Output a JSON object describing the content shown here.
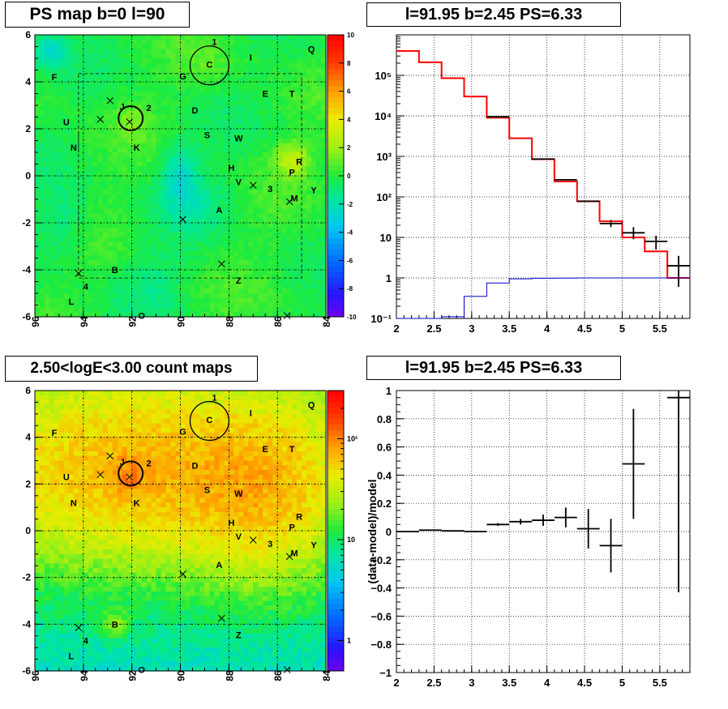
{
  "panels": {
    "tl_title": "PS map b=0 l=90",
    "tr_title": "l=91.95 b=2.45 PS=6.33",
    "bl_title": "2.50<logE<3.00 count maps",
    "br_title": "l=91.95 b=2.45 PS=6.33"
  },
  "chart_data": [
    {
      "type": "heatmap",
      "id": "ps_map",
      "title": "PS map b=0 l=90",
      "xlim": [
        96,
        84
      ],
      "ylim": [
        -6,
        6
      ],
      "x_ticks": [
        96,
        94,
        92,
        90,
        88,
        86,
        84
      ],
      "y_ticks": [
        -6,
        -4,
        -2,
        0,
        2,
        4,
        6
      ],
      "colorbar": {
        "min": -10,
        "max": 10,
        "ticks": [
          -10,
          -8,
          -6,
          -4,
          -2,
          0,
          2,
          4,
          6,
          8,
          10
        ],
        "scale": "linear"
      },
      "grid": true,
      "hotspots": [
        {
          "l": 95.4,
          "b": 5.3,
          "value": -4
        },
        {
          "l": 90.1,
          "b": 0.2,
          "value": -2.5
        },
        {
          "l": 85.5,
          "b": 0.8,
          "value": 3
        }
      ],
      "circles": [
        {
          "l": 88.8,
          "b": 4.7,
          "r": 0.8
        },
        {
          "l": 92.05,
          "b": 2.45,
          "r": 0.5
        }
      ],
      "crosses": [
        {
          "l": 92.9,
          "b": 3.2
        },
        {
          "l": 93.3,
          "b": 2.4
        },
        {
          "l": 92.1,
          "b": 2.3
        },
        {
          "l": 87.0,
          "b": -0.4
        },
        {
          "l": 85.5,
          "b": -1.1
        },
        {
          "l": 89.9,
          "b": -1.85
        },
        {
          "l": 88.3,
          "b": -3.75
        },
        {
          "l": 94.2,
          "b": -4.15
        },
        {
          "l": 85.6,
          "b": -5.95
        }
      ],
      "labels": [
        {
          "t": "1",
          "l": 88.6,
          "b": 5.7
        },
        {
          "t": "C",
          "l": 88.8,
          "b": 4.75
        },
        {
          "t": "I",
          "l": 87.1,
          "b": 5.05
        },
        {
          "t": "Q",
          "l": 84.6,
          "b": 5.4
        },
        {
          "t": "G",
          "l": 89.9,
          "b": 4.25
        },
        {
          "t": "F",
          "l": 95.2,
          "b": 4.2
        },
        {
          "t": "E",
          "l": 86.5,
          "b": 3.5
        },
        {
          "t": "T",
          "l": 85.4,
          "b": 3.5
        },
        {
          "t": "2",
          "l": 91.3,
          "b": 2.9
        },
        {
          "t": "D",
          "l": 89.4,
          "b": 2.8
        },
        {
          "t": "J",
          "l": 92.4,
          "b": 2.95
        },
        {
          "t": "U",
          "l": 94.7,
          "b": 2.3
        },
        {
          "t": "S",
          "l": 88.9,
          "b": 1.75
        },
        {
          "t": "W",
          "l": 87.6,
          "b": 1.6
        },
        {
          "t": "N",
          "l": 94.4,
          "b": 1.2
        },
        {
          "t": "K",
          "l": 91.8,
          "b": 1.2
        },
        {
          "t": "R",
          "l": 85.1,
          "b": 0.6
        },
        {
          "t": "H",
          "l": 87.9,
          "b": 0.35
        },
        {
          "t": "P",
          "l": 85.4,
          "b": 0.15
        },
        {
          "t": "V",
          "l": 87.6,
          "b": -0.25
        },
        {
          "t": "3",
          "l": 86.3,
          "b": -0.55
        },
        {
          "t": "Y",
          "l": 84.5,
          "b": -0.6
        },
        {
          "t": "M",
          "l": 85.3,
          "b": -0.95
        },
        {
          "t": "A",
          "l": 88.4,
          "b": -1.45
        },
        {
          "t": "B",
          "l": 92.7,
          "b": -4.0
        },
        {
          "t": "4",
          "l": 93.9,
          "b": -4.7
        },
        {
          "t": "Z",
          "l": 87.6,
          "b": -4.45
        },
        {
          "t": "L",
          "l": 94.5,
          "b": -5.35
        },
        {
          "t": "O",
          "l": 91.6,
          "b": -5.95
        }
      ]
    },
    {
      "type": "line",
      "id": "spectrum",
      "title": "l=91.95 b=2.45 PS=6.33",
      "xlim": [
        2,
        5.9
      ],
      "ylim": [
        0.1,
        1000000
      ],
      "yscale": "log",
      "x_ticks": [
        2,
        2.5,
        3,
        3.5,
        4,
        4.5,
        5,
        5.5
      ],
      "y_ticks": [
        0.1,
        1,
        10,
        100,
        1000,
        10000,
        100000
      ],
      "y_tick_labels": [
        "10⁻¹",
        "1",
        "10",
        "10²",
        "10³",
        "10⁴",
        "10⁵"
      ],
      "grid": true,
      "bin_edges": [
        2,
        2.3,
        2.6,
        2.9,
        3.2,
        3.5,
        3.8,
        4.1,
        4.4,
        4.7,
        5.0,
        5.3,
        5.6,
        5.9
      ],
      "series": [
        {
          "color": "#ff0000",
          "values": [
            400000,
            210000,
            85000,
            30000,
            9000,
            2800,
            850,
            240,
            78,
            25,
            10,
            4.5,
            1.0
          ]
        },
        {
          "color": "#0000cc",
          "values": [
            0.1,
            0.1,
            0.11,
            0.35,
            0.75,
            0.95,
            0.98,
            0.99,
            1.0,
            1.0,
            1.0,
            1.0,
            1.0
          ]
        }
      ],
      "data_points": [
        {
          "x": 3.35,
          "y": 9500,
          "xerr": 0.15
        },
        {
          "x": 3.95,
          "y": 860,
          "xerr": 0.15
        },
        {
          "x": 4.25,
          "y": 265,
          "xerr": 0.15
        },
        {
          "x": 4.55,
          "y": 78,
          "xerr": 0.15
        },
        {
          "x": 4.85,
          "y": 22,
          "ylo": 18,
          "yhi": 27,
          "xerr": 0.15
        },
        {
          "x": 5.15,
          "y": 13,
          "ylo": 9,
          "yhi": 18,
          "xerr": 0.15
        },
        {
          "x": 5.45,
          "y": 8,
          "ylo": 5,
          "yhi": 11,
          "xerr": 0.15
        },
        {
          "x": 5.75,
          "y": 2,
          "ylo": 0.6,
          "yhi": 3.5,
          "xerr": 0.15
        }
      ]
    },
    {
      "type": "heatmap",
      "id": "count_map",
      "title": "2.50<logE<3.00 count maps",
      "xlim": [
        96,
        84
      ],
      "ylim": [
        -6,
        6
      ],
      "x_ticks": [
        96,
        94,
        92,
        90,
        88,
        86,
        84
      ],
      "y_ticks": [
        -6,
        -4,
        -2,
        0,
        2,
        4,
        6
      ],
      "colorbar": {
        "scale": "log",
        "min": 0.5,
        "max": 300,
        "ticks": [
          1,
          10,
          100
        ],
        "tick_labels": [
          "1",
          "10",
          "10²"
        ]
      },
      "grid": true
    },
    {
      "type": "scatter",
      "id": "residuals",
      "title": "l=91.95 b=2.45 PS=6.33",
      "ylabel": "(data-model)/model",
      "xlim": [
        2,
        5.9
      ],
      "ylim": [
        -1,
        1
      ],
      "x_ticks": [
        2,
        2.5,
        3,
        3.5,
        4,
        4.5,
        5,
        5.5
      ],
      "y_ticks": [
        -1,
        -0.8,
        -0.6,
        -0.4,
        -0.2,
        0,
        0.2,
        0.4,
        0.6,
        0.8,
        1
      ],
      "grid": true,
      "points": [
        {
          "x": 2.15,
          "y": 0.0,
          "xerr": 0.15,
          "yerr": 0.002
        },
        {
          "x": 2.45,
          "y": 0.01,
          "xerr": 0.15,
          "yerr": 0.003
        },
        {
          "x": 2.75,
          "y": 0.005,
          "xerr": 0.15,
          "yerr": 0.004
        },
        {
          "x": 3.05,
          "y": 0.0,
          "xerr": 0.15,
          "yerr": 0.005
        },
        {
          "x": 3.35,
          "y": 0.05,
          "xerr": 0.15,
          "yerr": 0.01
        },
        {
          "x": 3.65,
          "y": 0.07,
          "xerr": 0.15,
          "yerr": 0.02
        },
        {
          "x": 3.95,
          "y": 0.08,
          "xerr": 0.15,
          "yerr": 0.04
        },
        {
          "x": 4.25,
          "y": 0.1,
          "xerr": 0.15,
          "yerr": 0.07
        },
        {
          "x": 4.55,
          "y": 0.02,
          "xerr": 0.15,
          "yerr": 0.14
        },
        {
          "x": 4.85,
          "y": -0.1,
          "xerr": 0.15,
          "yerr": 0.19
        },
        {
          "x": 5.15,
          "y": 0.48,
          "xerr": 0.15,
          "yerr": 0.39
        },
        {
          "x": 5.75,
          "y": 0.95,
          "xerr": 0.15,
          "yerr": 1.38
        }
      ]
    }
  ]
}
